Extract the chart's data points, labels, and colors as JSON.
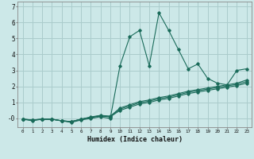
{
  "xlabel": "Humidex (Indice chaleur)",
  "ylabel": "",
  "xlim": [
    -0.5,
    23.5
  ],
  "ylim": [
    -0.55,
    7.3
  ],
  "xtick_labels": [
    "0",
    "1",
    "2",
    "3",
    "4",
    "5",
    "6",
    "7",
    "8",
    "9",
    "10",
    "11",
    "12",
    "13",
    "14",
    "15",
    "16",
    "17",
    "18",
    "19",
    "20",
    "21",
    "22",
    "23"
  ],
  "ytick_values": [
    0,
    1,
    2,
    3,
    4,
    5,
    6,
    7
  ],
  "background_color": "#cce8e8",
  "grid_color": "#aacccc",
  "line_color": "#1a6b5a",
  "lines": [
    {
      "x": [
        0,
        1,
        2,
        3,
        4,
        5,
        6,
        7,
        8,
        9,
        10,
        11,
        12,
        13,
        14,
        15,
        16,
        17,
        18,
        19,
        20,
        21,
        22,
        23
      ],
      "y": [
        -0.05,
        -0.15,
        -0.05,
        -0.05,
        -0.15,
        -0.25,
        -0.1,
        0.0,
        0.1,
        0.0,
        3.3,
        5.1,
        5.5,
        3.3,
        6.6,
        5.5,
        4.3,
        3.1,
        3.4,
        2.5,
        2.2,
        2.1,
        3.0,
        3.1
      ]
    },
    {
      "x": [
        0,
        1,
        2,
        3,
        4,
        5,
        6,
        7,
        8,
        9,
        10,
        11,
        12,
        13,
        14,
        15,
        16,
        17,
        18,
        19,
        20,
        21,
        22,
        23
      ],
      "y": [
        -0.05,
        -0.1,
        -0.05,
        -0.05,
        -0.15,
        -0.2,
        -0.05,
        0.05,
        0.15,
        0.1,
        0.5,
        0.7,
        0.9,
        1.0,
        1.15,
        1.25,
        1.4,
        1.55,
        1.65,
        1.75,
        1.85,
        1.95,
        2.05,
        2.2
      ]
    },
    {
      "x": [
        0,
        1,
        2,
        3,
        4,
        5,
        6,
        7,
        8,
        9,
        10,
        11,
        12,
        13,
        14,
        15,
        16,
        17,
        18,
        19,
        20,
        21,
        22,
        23
      ],
      "y": [
        -0.05,
        -0.1,
        -0.05,
        -0.05,
        -0.15,
        -0.2,
        -0.05,
        0.07,
        0.17,
        0.12,
        0.58,
        0.78,
        0.98,
        1.08,
        1.23,
        1.33,
        1.48,
        1.63,
        1.73,
        1.83,
        1.93,
        2.03,
        2.13,
        2.3
      ]
    },
    {
      "x": [
        0,
        1,
        2,
        3,
        4,
        5,
        6,
        7,
        8,
        9,
        10,
        11,
        12,
        13,
        14,
        15,
        16,
        17,
        18,
        19,
        20,
        21,
        22,
        23
      ],
      "y": [
        -0.05,
        -0.1,
        -0.05,
        -0.05,
        -0.15,
        -0.2,
        -0.05,
        0.09,
        0.19,
        0.14,
        0.65,
        0.85,
        1.05,
        1.15,
        1.3,
        1.4,
        1.55,
        1.7,
        1.8,
        1.9,
        2.0,
        2.1,
        2.2,
        2.4
      ]
    }
  ]
}
